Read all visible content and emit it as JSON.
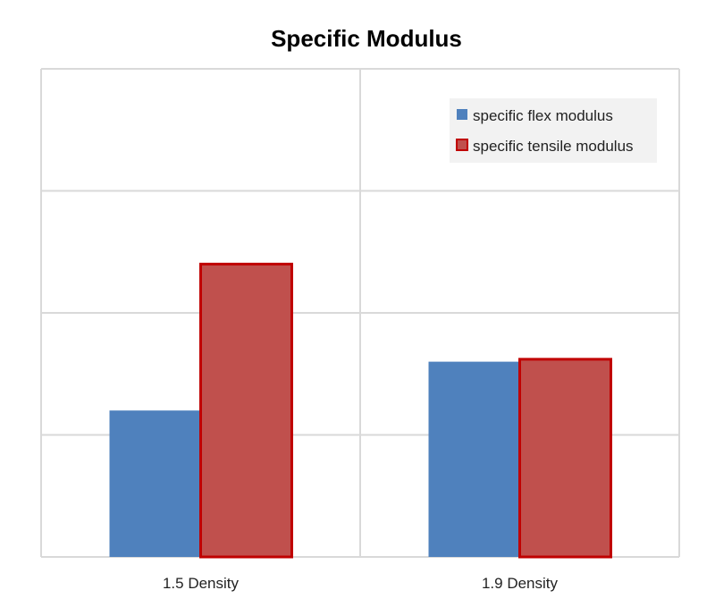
{
  "chart_data": {
    "type": "bar",
    "title": "Specific Modulus",
    "xlabel": "",
    "ylabel": "",
    "categories": [
      "1.5 Density",
      "1.9 Density"
    ],
    "series": [
      {
        "name": "specific flex modulus",
        "values": [
          1.2,
          1.6
        ],
        "color": "#4f81bd",
        "stroke": "#4f81bd"
      },
      {
        "name": "specific tensile modulus",
        "values": [
          2.4,
          1.62
        ],
        "color": "#c0504d",
        "stroke": "#c00000"
      }
    ],
    "ylim": [
      0,
      4
    ],
    "yticks": [
      0,
      1,
      2,
      3,
      4
    ],
    "y_tick_labels_shown": false,
    "grid": true,
    "legend_position": "top-right"
  }
}
